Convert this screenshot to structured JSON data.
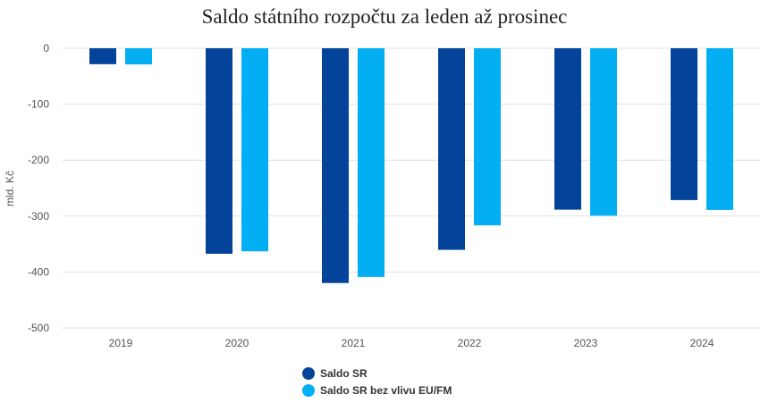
{
  "chart_data": {
    "type": "bar",
    "title": "Saldo státního rozpočtu za leden až prosinec",
    "ylabel": "mld. Kč",
    "xlabel": "",
    "categories": [
      "2019",
      "2020",
      "2021",
      "2022",
      "2023",
      "2024"
    ],
    "series": [
      {
        "name": "Saldo SR",
        "color": "#03449a",
        "values": [
          -28.5,
          -367.4,
          -419.7,
          -360.4,
          -288.5,
          -271.4
        ]
      },
      {
        "name": "Saldo SR bez vlivu EU/FM",
        "color": "#04aef2",
        "values": [
          -28.9,
          -363.0,
          -408.8,
          -316.6,
          -299.3,
          -289.0
        ]
      }
    ],
    "ylim": [
      -500,
      0
    ],
    "yticks": [
      0,
      -100,
      -200,
      -300,
      -400,
      -500
    ],
    "ytick_labels": [
      "0",
      "-100",
      "-200",
      "-300",
      "-400",
      "-500"
    ],
    "grid": true,
    "legend_position": "bottom"
  }
}
